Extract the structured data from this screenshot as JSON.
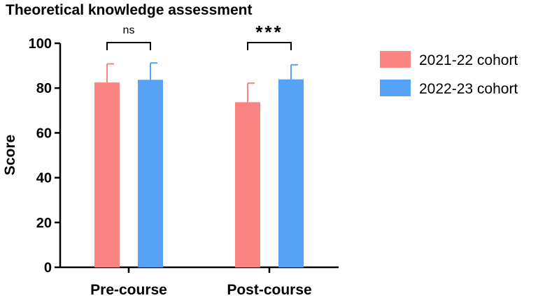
{
  "chart_data": {
    "type": "bar",
    "title": "Theoretical knowledge assessment",
    "ylabel": "Score",
    "xlabel": "",
    "ylim": [
      0,
      100
    ],
    "yticks": [
      0,
      20,
      40,
      60,
      80,
      100
    ],
    "categories": [
      "Pre-course",
      "Post-course"
    ],
    "series": [
      {
        "name": "2021-22 cohort",
        "color": "#f98482",
        "values": [
          82.5,
          73.7
        ],
        "errors": [
          8.3,
          8.5
        ]
      },
      {
        "name": "2022-23 cohort",
        "color": "#55a2f6",
        "values": [
          83.7,
          83.9
        ],
        "errors": [
          7.5,
          6.5
        ]
      }
    ],
    "annotations": [
      {
        "category": "Pre-course",
        "text": "ns"
      },
      {
        "category": "Post-course",
        "text": "***"
      }
    ],
    "legend_position": "right",
    "grid": false
  }
}
